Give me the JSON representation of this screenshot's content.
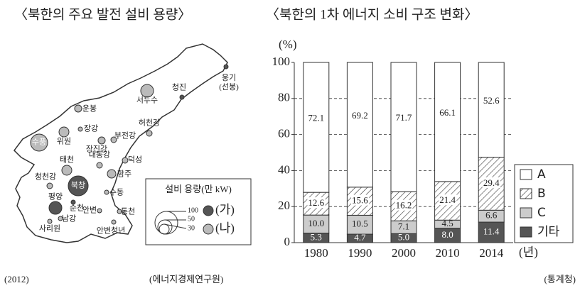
{
  "map": {
    "title": "〈북한의 주요 발전 설비 용량〉",
    "places": [
      "웅기\n(선봉)",
      "청진",
      "서두수",
      "운봉",
      "장강",
      "위원",
      "수풍",
      "허천강",
      "부전강",
      "장진강",
      "태천",
      "대동강",
      "덕성",
      "함주",
      "청천강",
      "북창",
      "평양",
      "순천",
      "남강",
      "사리원",
      "수동",
      "안변",
      "통천",
      "안변청년"
    ],
    "legend": {
      "title": "설비 용량(만 kW)",
      "scale": [
        "100",
        "50",
        "30"
      ],
      "items": [
        "(가)",
        "(나)"
      ]
    },
    "year": "(2012)",
    "source": "(에너지경제연구원)"
  },
  "chart_data": {
    "type": "stacked_bar",
    "title": "〈북한의 1차 에너지 소비 구조 변화〉",
    "y_label": "(%)",
    "x_unit": "(년)",
    "categories": [
      "1980",
      "1990",
      "2000",
      "2010",
      "2014"
    ],
    "series": [
      {
        "name": "기타",
        "color": "#555555",
        "values": [
          5.3,
          4.7,
          5.0,
          8.0,
          11.4
        ],
        "value_labels": [
          "5.3",
          "4.7",
          "5.0",
          "8.0",
          "11.4"
        ]
      },
      {
        "name": "C",
        "color": "#cccccc",
        "values": [
          10.0,
          10.5,
          7.1,
          4.5,
          6.6
        ],
        "value_labels": [
          "10.0",
          "10.5",
          "7.1",
          "4.5",
          "6.6"
        ]
      },
      {
        "name": "B",
        "color": "#ffffff",
        "pattern": "hatch",
        "values": [
          12.6,
          15.6,
          16.2,
          21.4,
          29.4
        ],
        "value_labels": [
          "12.6",
          "15.6",
          "16.2",
          "21.4",
          "29.4"
        ]
      },
      {
        "name": "A",
        "color": "#ffffff",
        "values": [
          72.1,
          69.2,
          71.7,
          66.1,
          52.6
        ],
        "value_labels": [
          "72.1",
          "69.2",
          "71.7",
          "66.1",
          "52.6"
        ]
      }
    ],
    "ylim": [
      0,
      100
    ],
    "yticks": [
      0,
      20,
      40,
      60,
      80,
      100
    ],
    "grid": true,
    "legend": "right",
    "source": "(통계청)"
  }
}
